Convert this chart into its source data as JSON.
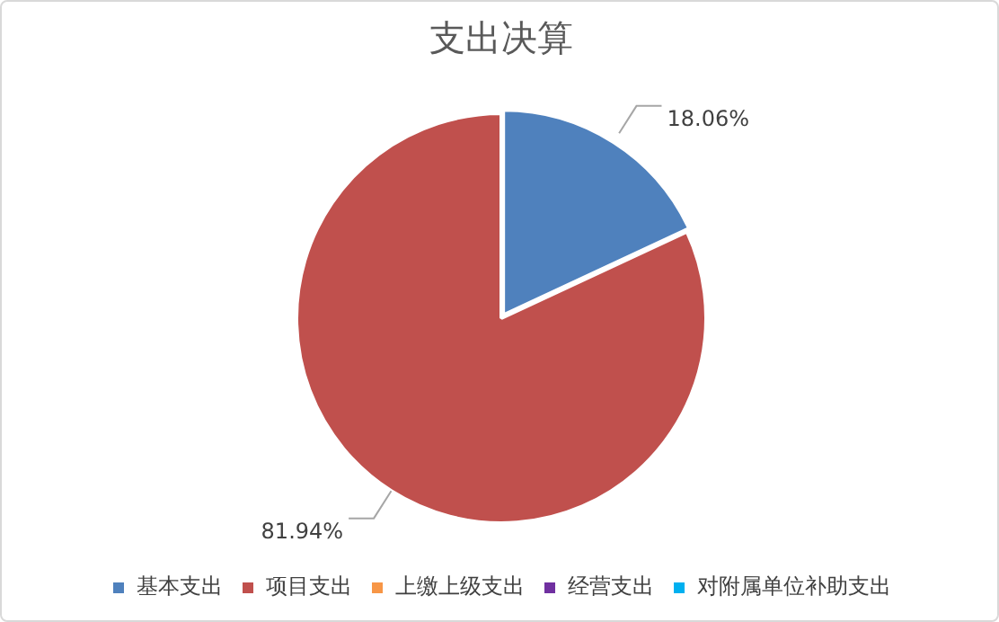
{
  "chart_data": {
    "type": "pie",
    "title": "支出决算",
    "categories": [
      "基本支出",
      "项目支出",
      "上缴上级支出",
      "经营支出",
      "对附属单位补助支出"
    ],
    "values": [
      18.06,
      81.94,
      0,
      0,
      0
    ],
    "colors": [
      "#4f81bd",
      "#c0504d",
      "#f79646",
      "#7030a0",
      "#00b0f0"
    ],
    "value_labels": [
      "18.06%",
      "81.94%",
      null,
      null,
      null
    ],
    "legend": "bottom"
  }
}
